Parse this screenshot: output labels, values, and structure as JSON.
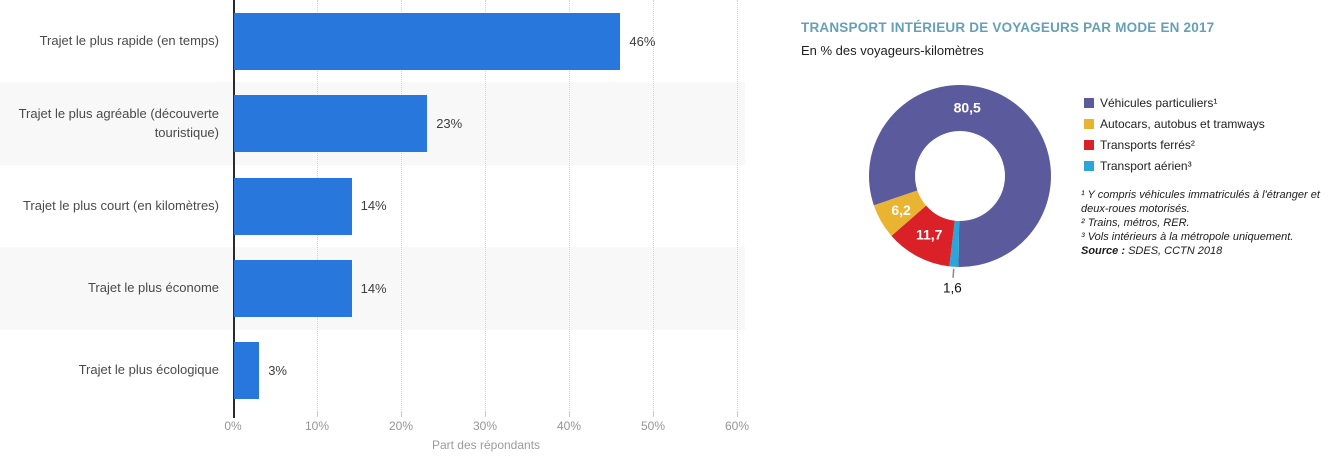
{
  "chart_data": [
    {
      "type": "bar",
      "orientation": "horizontal",
      "categories": [
        "Trajet le plus rapide (en temps)",
        "Trajet le plus agréable (découverte touristique)",
        "Trajet le plus court (en kilomètres)",
        "Trajet le plus économe",
        "Trajet le plus écologique"
      ],
      "values": [
        46,
        23,
        14,
        14,
        3
      ],
      "value_labels": [
        "46%",
        "23%",
        "14%",
        "14%",
        "3%"
      ],
      "xlabel": "Part des répondants",
      "xlim": [
        0,
        60
      ],
      "x_ticks": [
        "0%",
        "10%",
        "20%",
        "30%",
        "40%",
        "50%",
        "60%"
      ],
      "x_tick_values": [
        0,
        10,
        20,
        30,
        40,
        50,
        60
      ],
      "grid": "dotted-vertical",
      "bar_color": "#2877dd",
      "stripe_color": "#f8f8f8"
    },
    {
      "type": "pie",
      "subtype": "donut",
      "title": "TRANSPORT INTÉRIEUR DE VOYAGEURS PAR MODE EN 2017",
      "subtitle": "En % des voyageurs-kilomètres",
      "title_color": "#64a0b8",
      "slices": [
        {
          "label": "Véhicules particuliers¹",
          "value": 80.5,
          "display": "80,5",
          "color": "#5b5a9c"
        },
        {
          "label": "Autocars, autobus et tramways",
          "value": 6.2,
          "display": "6,2",
          "color": "#e9b432"
        },
        {
          "label": "Transports ferrés²",
          "value": 11.7,
          "display": "11,7",
          "color": "#da2127"
        },
        {
          "label": "Transport aérien³",
          "value": 1.6,
          "display": "1,6",
          "color": "#2aa7d8"
        }
      ],
      "legend_position": "right",
      "footnotes": [
        "¹ Y compris véhicules immatriculés à l'étranger et deux-roues motorisés.",
        "² Trains, métros, RER.",
        "³ Vols intérieurs à la métropole uniquement."
      ],
      "source_label": "Source :",
      "source_text": " SDES, CCTN 2018"
    }
  ]
}
